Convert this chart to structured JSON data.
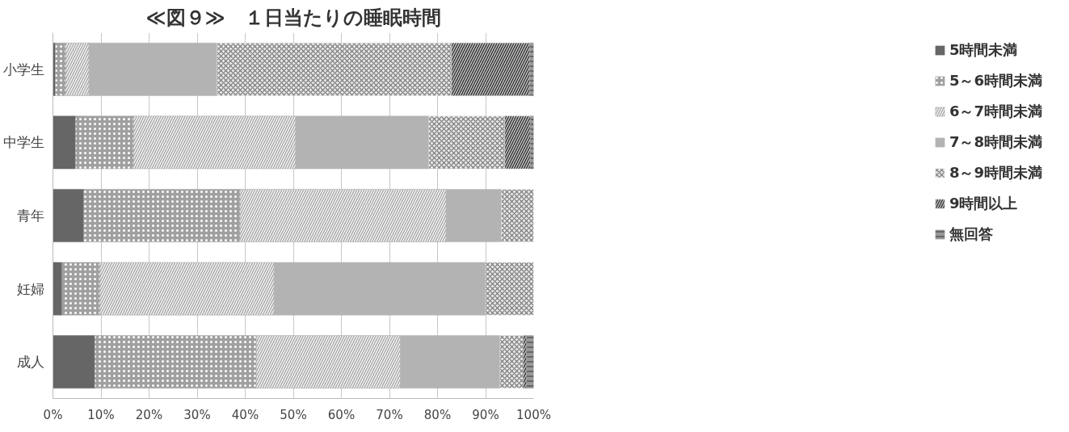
{
  "chart_data": {
    "type": "bar",
    "orientation": "horizontal",
    "stacked": true,
    "title": "≪図９≫　１日当たりの睡眠時間",
    "categories": [
      "小学生",
      "中学生",
      "青年",
      "妊婦",
      "成人"
    ],
    "series": [
      {
        "name": "5時間未満",
        "color": "#666666",
        "values": [
          0.5,
          4.7,
          6.4,
          1.9,
          8.7
        ]
      },
      {
        "name": "5～6時間未満",
        "color": "#a0a0a0",
        "values": [
          2.2,
          12.1,
          32.5,
          7.9,
          33.6
        ]
      },
      {
        "name": "6～7時間未満",
        "color": "#aaaaaa",
        "values": [
          4.8,
          33.7,
          42.9,
          36.2,
          30.0
        ]
      },
      {
        "name": "7～8時間未満",
        "color": "#b3b3b3",
        "values": [
          26.6,
          27.7,
          11.5,
          44.0,
          20.7
        ]
      },
      {
        "name": "8～9時間未満",
        "color": "#e6e6e6",
        "values": [
          48.8,
          15.8,
          6.7,
          10.0,
          4.8
        ]
      },
      {
        "name": "9時間以上",
        "color": "#c0c0c0",
        "values": [
          16.3,
          5.3,
          null,
          null,
          0.7
        ]
      },
      {
        "name": "無回答",
        "color": "#999999",
        "values": [
          0.8,
          0.7,
          null,
          null,
          1.5
        ]
      }
    ],
    "xlim": [
      0,
      100
    ],
    "xticks": [
      {
        "value": 0,
        "label": "0%"
      },
      {
        "value": 10,
        "label": "10%"
      },
      {
        "value": 20,
        "label": "20%"
      },
      {
        "value": 30,
        "label": "30%"
      },
      {
        "value": 40,
        "label": "40%"
      },
      {
        "value": 50,
        "label": "50%"
      },
      {
        "value": 60,
        "label": "60%"
      },
      {
        "value": 70,
        "label": "70%"
      },
      {
        "value": 80,
        "label": "80%"
      },
      {
        "value": 90,
        "label": "90%"
      },
      {
        "value": 100,
        "label": "100%"
      }
    ],
    "grid": "x",
    "legend": "right"
  }
}
